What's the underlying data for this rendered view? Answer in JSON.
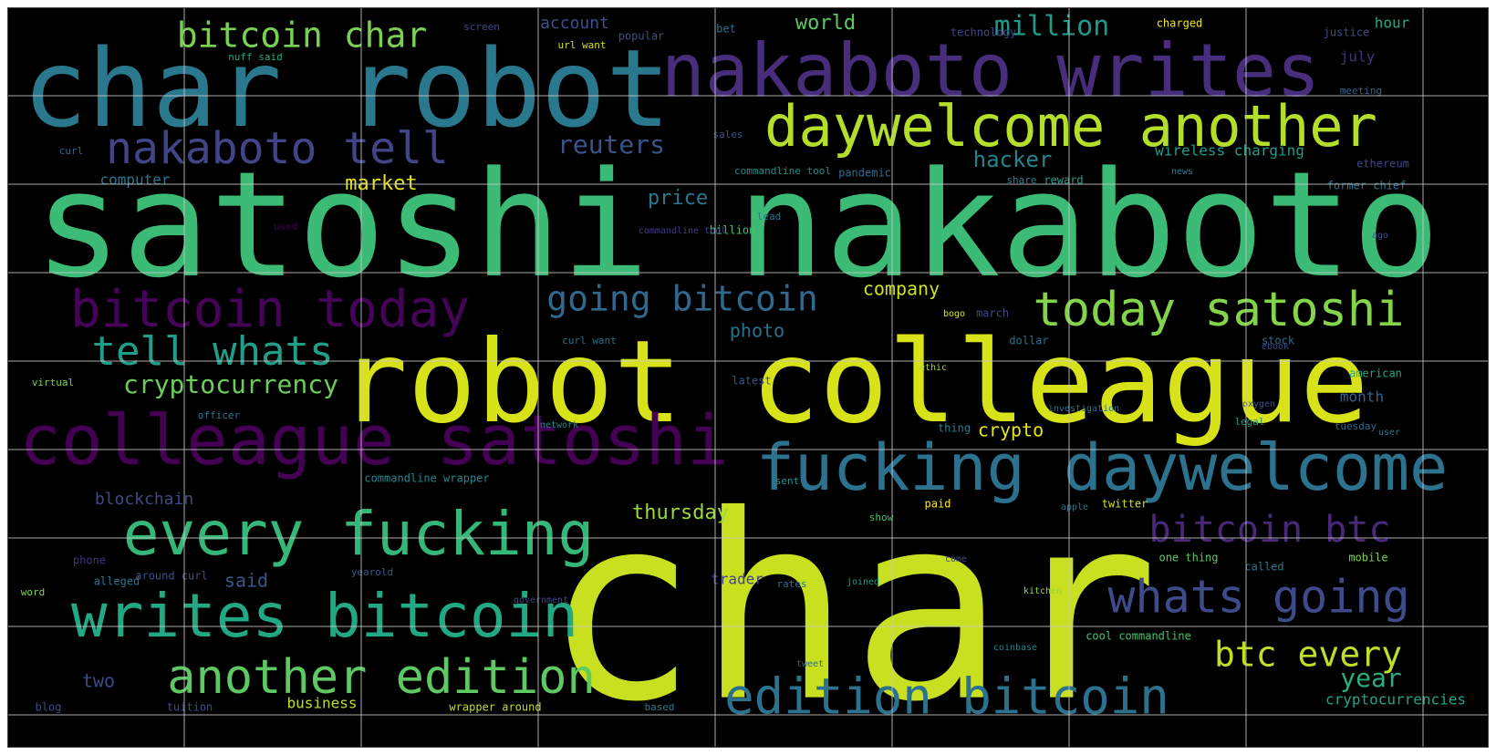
{
  "words": [
    {
      "text": "char",
      "color": "#c8e020"
    },
    {
      "text": "satoshi nakaboto",
      "color": "#3bbb75"
    },
    {
      "text": "robot colleague",
      "color": "#d8e219"
    },
    {
      "text": "char robot",
      "color": "#2a788e"
    },
    {
      "text": "nakaboto writes",
      "color": "#472d7b"
    },
    {
      "text": "colleague satoshi",
      "color": "#440154"
    },
    {
      "text": "fucking daywelcome",
      "color": "#2c728e"
    },
    {
      "text": "daywelcome another",
      "color": "#b5de2b"
    },
    {
      "text": "every fucking",
      "color": "#35b779"
    },
    {
      "text": "writes bitcoin",
      "color": "#22a884"
    },
    {
      "text": "edition bitcoin",
      "color": "#2c728e"
    },
    {
      "text": "bitcoin today",
      "color": "#450457"
    },
    {
      "text": "today satoshi",
      "color": "#84d44b"
    },
    {
      "text": "nakaboto tell",
      "color": "#414487"
    },
    {
      "text": "another edition",
      "color": "#5ec962"
    },
    {
      "text": "whats going",
      "color": "#3e4a89"
    },
    {
      "text": "going bitcoin",
      "color": "#31688e"
    },
    {
      "text": "tell whats",
      "color": "#1f9e89"
    },
    {
      "text": "bitcoin btc",
      "color": "#482878"
    },
    {
      "text": "bitcoin char",
      "color": "#7ad151"
    },
    {
      "text": "btc every",
      "color": "#bddf26"
    },
    {
      "text": "million",
      "color": "#1f9a8a"
    },
    {
      "text": "cryptocurrency",
      "color": "#6ccd5a"
    },
    {
      "text": "reuters",
      "color": "#3b528b"
    },
    {
      "text": "year",
      "color": "#29af7f"
    },
    {
      "text": "hacker",
      "color": "#26828e"
    },
    {
      "text": "market",
      "color": "#e5e419"
    },
    {
      "text": "world",
      "color": "#5ec962"
    },
    {
      "text": "price",
      "color": "#2a788e"
    },
    {
      "text": "thursday",
      "color": "#9bd93c"
    },
    {
      "text": "crypto",
      "color": "#e2e418"
    },
    {
      "text": "company",
      "color": "#cde11d"
    },
    {
      "text": "blockchain",
      "color": "#3e4a89"
    },
    {
      "text": "account",
      "color": "#3b528b"
    },
    {
      "text": "photo",
      "color": "#2d708e"
    },
    {
      "text": "cryptocurrencies",
      "color": "#20a386"
    },
    {
      "text": "said",
      "color": "#39568c"
    },
    {
      "text": "two",
      "color": "#3e4989"
    },
    {
      "text": "business",
      "color": "#c2df23"
    },
    {
      "text": "month",
      "color": "#355f8d"
    },
    {
      "text": "wireless charging",
      "color": "#1e9b8a"
    },
    {
      "text": "hour",
      "color": "#22a884"
    },
    {
      "text": "computer",
      "color": "#2a768e"
    },
    {
      "text": "july",
      "color": "#472c7a"
    },
    {
      "text": "trader",
      "color": "#424086"
    },
    {
      "text": "popular",
      "color": "#3c4f8a"
    },
    {
      "text": "technology",
      "color": "#404688"
    },
    {
      "text": "charged",
      "color": "#f1e51d"
    },
    {
      "text": "justice",
      "color": "#3d4e8a"
    },
    {
      "text": "dollar",
      "color": "#2c728e"
    },
    {
      "text": "american",
      "color": "#22a785"
    },
    {
      "text": "twitter",
      "color": "#d2e21b"
    },
    {
      "text": "mobile",
      "color": "#7ad151"
    },
    {
      "text": "former chief",
      "color": "#2a788e"
    },
    {
      "text": "paid",
      "color": "#fde725"
    },
    {
      "text": "ethereum",
      "color": "#3f4788"
    },
    {
      "text": "reward",
      "color": "#1fa088"
    },
    {
      "text": "march",
      "color": "#3e4a89"
    },
    {
      "text": "pandemic",
      "color": "#2f6c8e"
    },
    {
      "text": "commandline tool",
      "color": "#228c8d"
    },
    {
      "text": "stock",
      "color": "#30698e"
    },
    {
      "text": "meeting",
      "color": "#31668e"
    },
    {
      "text": "url want",
      "color": "#d5e21a"
    },
    {
      "text": "share",
      "color": "#26818e"
    },
    {
      "text": "cool commandline",
      "color": "#4ac16d"
    },
    {
      "text": "commandline wrapper",
      "color": "#24878e"
    },
    {
      "text": "wrapper around",
      "color": "#bade28"
    },
    {
      "text": "around curl",
      "color": "#3d4d8a"
    },
    {
      "text": "alleged",
      "color": "#2b748e"
    },
    {
      "text": "phone",
      "color": "#46327e"
    },
    {
      "text": "rates",
      "color": "#2e6e8e"
    },
    {
      "text": "one thing",
      "color": "#5cc863"
    },
    {
      "text": "called",
      "color": "#2a788e"
    },
    {
      "text": "thing",
      "color": "#277f8e"
    },
    {
      "text": "billion",
      "color": "#4ac16d"
    },
    {
      "text": "yearold",
      "color": "#38588c"
    },
    {
      "text": "tuesday",
      "color": "#31688e"
    },
    {
      "text": "latest",
      "color": "#3a548c"
    },
    {
      "text": "legal",
      "color": "#1f988b"
    },
    {
      "text": "bet",
      "color": "#2d708e"
    },
    {
      "text": "sent",
      "color": "#21918c"
    },
    {
      "text": "used",
      "color": "#440154"
    },
    {
      "text": "blog",
      "color": "#3e4a89"
    },
    {
      "text": "lead",
      "color": "#2a778e"
    },
    {
      "text": "word",
      "color": "#7fd34e"
    },
    {
      "text": "tuition",
      "color": "#3e4c8a"
    },
    {
      "text": "curl",
      "color": "#31688e"
    },
    {
      "text": "show",
      "color": "#4ac16d"
    },
    {
      "text": "officer",
      "color": "#2c718e"
    },
    {
      "text": "virtual",
      "color": "#7ad151"
    },
    {
      "text": "user",
      "color": "#2a768e"
    },
    {
      "text": "sales",
      "color": "#3b528b"
    },
    {
      "text": "news",
      "color": "#26818e"
    },
    {
      "text": "screen",
      "color": "#3e4a89"
    },
    {
      "text": "nuff said",
      "color": "#22a884"
    },
    {
      "text": "curl want",
      "color": "#2c728e"
    },
    {
      "text": "bogo",
      "color": "#dde318"
    },
    {
      "text": "ebook",
      "color": "#3e4a89"
    },
    {
      "text": "based",
      "color": "#2a788e"
    },
    {
      "text": "investigation",
      "color": "#2d708e"
    },
    {
      "text": "coinbase",
      "color": "#24868e"
    },
    {
      "text": "commandline tool",
      "color": "#433e85"
    },
    {
      "text": "tweet",
      "color": "#31688e"
    },
    {
      "text": "government",
      "color": "#3f4889"
    },
    {
      "text": "apple",
      "color": "#2c728e"
    },
    {
      "text": "oxygen",
      "color": "#3b528b"
    },
    {
      "text": "network",
      "color": "#23898e"
    },
    {
      "text": "come",
      "color": "#3e4a89"
    },
    {
      "text": "ago",
      "color": "#3b528b"
    },
    {
      "text": "kitchen",
      "color": "#8fd744"
    },
    {
      "text": "ethic",
      "color": "#9fda3a"
    },
    {
      "text": "joined",
      "color": "#1e9c89"
    }
  ]
}
